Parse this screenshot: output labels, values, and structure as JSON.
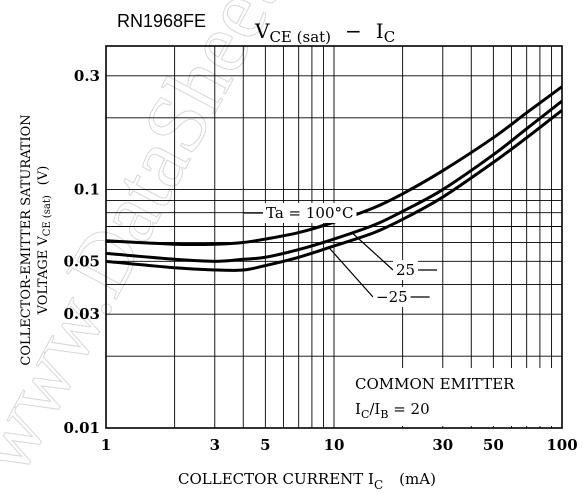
{
  "chart_data": {
    "type": "line",
    "part_number": "RN1968FE",
    "title_lhs": "V",
    "title_lhs_sub": "CE (sat)",
    "title_dash": "−",
    "title_rhs": "I",
    "title_rhs_sub": "C",
    "ylabel_line1": "COLLECTOR-EMITTER SATURATION",
    "ylabel_line2_a": "VOLTAGE  V",
    "ylabel_line2_sub": "CE (sat)",
    "ylabel_line2_b": "(V)",
    "xlabel_a": "COLLECTOR  CURRENT  I",
    "xlabel_sub": "C",
    "xlabel_b": "(mA)",
    "xscale": "log",
    "yscale": "log",
    "xlim": [
      1,
      100
    ],
    "ylim": [
      0.01,
      0.4
    ],
    "grid": true,
    "xtick_labels": [
      {
        "value": 1,
        "label": "1"
      },
      {
        "value": 3,
        "label": "3"
      },
      {
        "value": 5,
        "label": "5"
      },
      {
        "value": 10,
        "label": "10"
      },
      {
        "value": 30,
        "label": "30"
      },
      {
        "value": 50,
        "label": "50"
      },
      {
        "value": 100,
        "label": "100"
      }
    ],
    "ytick_labels": [
      {
        "value": 0.01,
        "label": "0.01"
      },
      {
        "value": 0.03,
        "label": "0.03"
      },
      {
        "value": 0.05,
        "label": "0.05"
      },
      {
        "value": 0.1,
        "label": "0.1"
      },
      {
        "value": 0.3,
        "label": "0.3"
      }
    ],
    "x_gridlines": [
      1,
      2,
      3,
      4,
      5,
      6,
      7,
      8,
      9,
      10,
      20,
      30,
      40,
      50,
      60,
      70,
      80,
      90,
      100
    ],
    "y_gridlines": [
      0.01,
      0.02,
      0.03,
      0.04,
      0.05,
      0.06,
      0.07,
      0.08,
      0.09,
      0.1,
      0.2,
      0.3,
      0.4
    ],
    "series": [
      {
        "label": "Ta = 100°C",
        "x": [
          1,
          2,
          3,
          4,
          5,
          7,
          10,
          15,
          20,
          30,
          50,
          70,
          100
        ],
        "values": [
          0.061,
          0.059,
          0.059,
          0.06,
          0.062,
          0.066,
          0.073,
          0.084,
          0.096,
          0.12,
          0.165,
          0.21,
          0.27
        ]
      },
      {
        "label": "25",
        "x": [
          1,
          2,
          3,
          4,
          5,
          7,
          10,
          15,
          20,
          30,
          50,
          70,
          100
        ],
        "values": [
          0.054,
          0.051,
          0.05,
          0.051,
          0.052,
          0.056,
          0.062,
          0.071,
          0.081,
          0.1,
          0.14,
          0.18,
          0.235
        ]
      },
      {
        "label": "−25",
        "x": [
          1,
          2,
          3,
          4,
          5,
          7,
          10,
          15,
          20,
          30,
          50,
          70,
          100
        ],
        "values": [
          0.05,
          0.047,
          0.046,
          0.046,
          0.048,
          0.052,
          0.058,
          0.066,
          0.075,
          0.093,
          0.13,
          0.165,
          0.215
        ]
      }
    ],
    "annotation_line1": "COMMON EMITTER",
    "annotation_line2_a": "I",
    "annotation_line2_sub1": "C",
    "annotation_line2_b": "/I",
    "annotation_line2_sub2": "B",
    "annotation_line2_c": " = 20",
    "series_label_anchors": [
      {
        "series": 0,
        "x": 7.5
      },
      {
        "series": 1,
        "x": 12
      },
      {
        "series": 2,
        "x": 9.5
      }
    ]
  },
  "watermark": {
    "text": "www.DataSheet4U.com",
    "color": "#b0b0b0"
  }
}
